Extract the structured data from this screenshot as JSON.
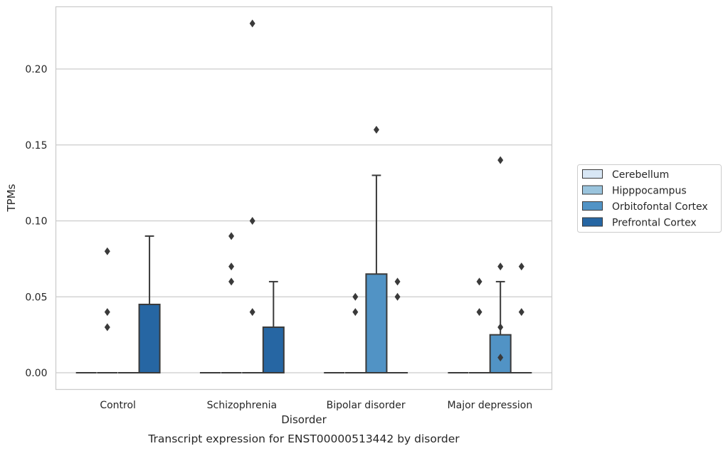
{
  "chart_data": {
    "type": "boxplot",
    "xlabel": "Disorder",
    "ylabel": "TPMs",
    "caption": "Transcript expression for ENST00000513442 by disorder",
    "categories": [
      "Control",
      "Schizophrenia",
      "Bipolar disorder",
      "Major depression"
    ],
    "ylim": [
      -0.011,
      0.241
    ],
    "yticks": [
      0.0,
      0.05,
      0.1,
      0.15,
      0.2
    ],
    "ytick_labels": [
      "0.00",
      "0.05",
      "0.10",
      "0.15",
      "0.20"
    ],
    "grid": "horizontal",
    "legend_position": "right",
    "series": [
      {
        "name": "Cerebellum",
        "color": "#d8e7f5"
      },
      {
        "name": "Hipppocampus",
        "color": "#9ac4dd"
      },
      {
        "name": "Orbitofontal Cortex",
        "color": "#5193c5"
      },
      {
        "name": "Prefrontal Cortex",
        "color": "#2666a3"
      }
    ],
    "boxes": [
      {
        "category": "Control",
        "series": "Cerebellum",
        "q1": 0,
        "median": 0,
        "q3": 0,
        "whisker_low": 0,
        "whisker_high": 0,
        "outliers": []
      },
      {
        "category": "Control",
        "series": "Hipppocampus",
        "q1": 0,
        "median": 0,
        "q3": 0,
        "whisker_low": 0,
        "whisker_high": 0,
        "outliers": [
          0.03,
          0.04,
          0.08
        ]
      },
      {
        "category": "Control",
        "series": "Orbitofontal Cortex",
        "q1": 0,
        "median": 0,
        "q3": 0,
        "whisker_low": 0,
        "whisker_high": 0,
        "outliers": []
      },
      {
        "category": "Control",
        "series": "Prefrontal Cortex",
        "q1": 0,
        "median": 0,
        "q3": 0.045,
        "whisker_low": 0,
        "whisker_high": 0.09,
        "outliers": []
      },
      {
        "category": "Schizophrenia",
        "series": "Cerebellum",
        "q1": 0,
        "median": 0,
        "q3": 0,
        "whisker_low": 0,
        "whisker_high": 0,
        "outliers": []
      },
      {
        "category": "Schizophrenia",
        "series": "Hipppocampus",
        "q1": 0,
        "median": 0,
        "q3": 0,
        "whisker_low": 0,
        "whisker_high": 0,
        "outliers": [
          0.06,
          0.07,
          0.09
        ]
      },
      {
        "category": "Schizophrenia",
        "series": "Orbitofontal Cortex",
        "q1": 0,
        "median": 0,
        "q3": 0,
        "whisker_low": 0,
        "whisker_high": 0,
        "outliers": [
          0.04,
          0.1,
          0.23
        ]
      },
      {
        "category": "Schizophrenia",
        "series": "Prefrontal Cortex",
        "q1": 0,
        "median": 0,
        "q3": 0.03,
        "whisker_low": 0,
        "whisker_high": 0.06,
        "outliers": []
      },
      {
        "category": "Bipolar disorder",
        "series": "Cerebellum",
        "q1": 0,
        "median": 0,
        "q3": 0,
        "whisker_low": 0,
        "whisker_high": 0,
        "outliers": []
      },
      {
        "category": "Bipolar disorder",
        "series": "Hipppocampus",
        "q1": 0,
        "median": 0,
        "q3": 0,
        "whisker_low": 0,
        "whisker_high": 0,
        "outliers": [
          0.04,
          0.05
        ]
      },
      {
        "category": "Bipolar disorder",
        "series": "Orbitofontal Cortex",
        "q1": 0,
        "median": 0,
        "q3": 0.065,
        "whisker_low": 0,
        "whisker_high": 0.13,
        "outliers": [
          0.16
        ]
      },
      {
        "category": "Bipolar disorder",
        "series": "Prefrontal Cortex",
        "q1": 0,
        "median": 0,
        "q3": 0,
        "whisker_low": 0,
        "whisker_high": 0,
        "outliers": [
          0.05,
          0.06
        ]
      },
      {
        "category": "Major depression",
        "series": "Cerebellum",
        "q1": 0,
        "median": 0,
        "q3": 0,
        "whisker_low": 0,
        "whisker_high": 0,
        "outliers": []
      },
      {
        "category": "Major depression",
        "series": "Hipppocampus",
        "q1": 0,
        "median": 0,
        "q3": 0,
        "whisker_low": 0,
        "whisker_high": 0,
        "outliers": [
          0.04,
          0.06
        ]
      },
      {
        "category": "Major depression",
        "series": "Orbitofontal Cortex",
        "q1": 0,
        "median": 0,
        "q3": 0.025,
        "whisker_low": 0,
        "whisker_high": 0.06,
        "outliers": [
          0.01,
          0.03,
          0.07,
          0.14
        ]
      },
      {
        "category": "Major depression",
        "series": "Prefrontal Cortex",
        "q1": 0,
        "median": 0,
        "q3": 0,
        "whisker_low": 0,
        "whisker_high": 0,
        "outliers": [
          0.04,
          0.07
        ]
      }
    ]
  }
}
